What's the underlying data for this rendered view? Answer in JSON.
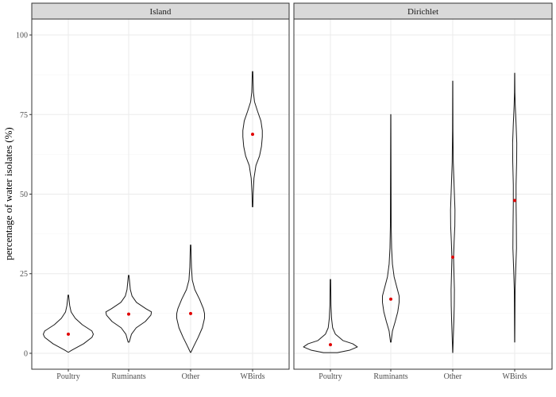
{
  "chart_data": {
    "type": "violin",
    "ylabel": "percentage of water isolates (%)",
    "xlabel": "",
    "ylim": [
      -5,
      105
    ],
    "yticks": [
      0,
      25,
      50,
      75,
      100
    ],
    "categories": [
      "Poultry",
      "Ruminants",
      "Other",
      "WBirds"
    ],
    "grid": true,
    "colors": {
      "strip_fill": "#d9d9d9",
      "panel_border": "#333333",
      "grid_major": "#ebebeb",
      "grid_minor": "#f5f5f5",
      "violin_line": "#1a1a1a",
      "point": "#e00000"
    },
    "panels": [
      {
        "title": "Island",
        "groups": [
          {
            "category": "Poultry",
            "median": 6,
            "profile": [
              [
                0.3,
                0
              ],
              [
                1,
                0.13
              ],
              [
                3,
                0.55
              ],
              [
                5,
                0.85
              ],
              [
                6,
                0.9
              ],
              [
                7,
                0.85
              ],
              [
                9,
                0.5
              ],
              [
                11,
                0.25
              ],
              [
                13,
                0.1
              ],
              [
                15,
                0.05
              ],
              [
                18.3,
                0.01
              ]
            ]
          },
          {
            "category": "Ruminants",
            "median": 12.3,
            "profile": [
              [
                3.5,
                0.02
              ],
              [
                6,
                0.1
              ],
              [
                8,
                0.27
              ],
              [
                10,
                0.6
              ],
              [
                12,
                0.8
              ],
              [
                13,
                0.82
              ],
              [
                14,
                0.62
              ],
              [
                16,
                0.28
              ],
              [
                18,
                0.12
              ],
              [
                20,
                0.06
              ],
              [
                24.5,
                0.01
              ]
            ]
          },
          {
            "category": "Other",
            "median": 12.5,
            "profile": [
              [
                0.3,
                0.01
              ],
              [
                2,
                0.1
              ],
              [
                5,
                0.27
              ],
              [
                8,
                0.42
              ],
              [
                11,
                0.5
              ],
              [
                12.5,
                0.5
              ],
              [
                14,
                0.46
              ],
              [
                17,
                0.32
              ],
              [
                20,
                0.15
              ],
              [
                23,
                0.06
              ],
              [
                27,
                0.03
              ],
              [
                34,
                0.01
              ]
            ]
          },
          {
            "category": "WBirds",
            "median": 68.8,
            "profile": [
              [
                46,
                0.01
              ],
              [
                50,
                0.02
              ],
              [
                55,
                0.05
              ],
              [
                59,
                0.12
              ],
              [
                62,
                0.25
              ],
              [
                65,
                0.32
              ],
              [
                68,
                0.35
              ],
              [
                70,
                0.35
              ],
              [
                73,
                0.3
              ],
              [
                76,
                0.18
              ],
              [
                79,
                0.07
              ],
              [
                82,
                0.03
              ],
              [
                85,
                0.02
              ],
              [
                88.5,
                0.01
              ]
            ]
          }
        ]
      },
      {
        "title": "Dirichlet",
        "groups": [
          {
            "category": "Poultry",
            "median": 2.7,
            "profile": [
              [
                0.2,
                0.25
              ],
              [
                1,
                0.7
              ],
              [
                2,
                0.97
              ],
              [
                3,
                0.8
              ],
              [
                4,
                0.45
              ],
              [
                6,
                0.18
              ],
              [
                8,
                0.08
              ],
              [
                11,
                0.04
              ],
              [
                15,
                0.02
              ],
              [
                23.2,
                0.01
              ]
            ]
          },
          {
            "category": "Ruminants",
            "median": 17,
            "profile": [
              [
                3.5,
                0.01
              ],
              [
                7,
                0.06
              ],
              [
                10,
                0.16
              ],
              [
                13,
                0.25
              ],
              [
                16,
                0.3
              ],
              [
                18,
                0.3
              ],
              [
                21,
                0.21
              ],
              [
                24,
                0.12
              ],
              [
                28,
                0.06
              ],
              [
                33,
                0.03
              ],
              [
                40,
                0.015
              ],
              [
                75,
                0.003
              ]
            ]
          },
          {
            "category": "Other",
            "median": 30.2,
            "profile": [
              [
                0.2,
                0.003
              ],
              [
                5,
                0.02
              ],
              [
                10,
                0.04
              ],
              [
                15,
                0.055
              ],
              [
                20,
                0.06
              ],
              [
                25,
                0.045
              ],
              [
                30,
                0.03
              ],
              [
                35,
                0.05
              ],
              [
                40,
                0.075
              ],
              [
                45,
                0.08
              ],
              [
                50,
                0.06
              ],
              [
                55,
                0.04
              ],
              [
                60,
                0.02
              ],
              [
                70,
                0.008
              ],
              [
                85.5,
                0.003
              ]
            ]
          },
          {
            "category": "WBirds",
            "median": 48,
            "profile": [
              [
                3.5,
                0.003
              ],
              [
                10,
                0.008
              ],
              [
                20,
                0.015
              ],
              [
                27,
                0.04
              ],
              [
                33,
                0.065
              ],
              [
                40,
                0.06
              ],
              [
                47,
                0.05
              ],
              [
                53,
                0.05
              ],
              [
                60,
                0.07
              ],
              [
                66,
                0.075
              ],
              [
                72,
                0.05
              ],
              [
                78,
                0.02
              ],
              [
                82,
                0.008
              ],
              [
                88,
                0.003
              ]
            ]
          }
        ]
      }
    ]
  }
}
